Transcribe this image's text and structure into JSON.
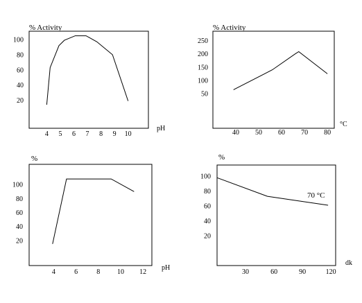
{
  "chart_data": [
    {
      "type": "line",
      "ylabel": "% Activity",
      "xlabel": "pH",
      "xticks": [
        4,
        5,
        6,
        7,
        8,
        9,
        10
      ],
      "yticks": [
        20,
        40,
        60,
        80,
        100
      ],
      "xlim": [
        2.7,
        11.5
      ],
      "ylim": [
        -17,
        111
      ],
      "x": [
        4.0,
        4.25,
        4.9,
        5.3,
        6.1,
        6.9,
        7.7,
        8.85,
        10.0
      ],
      "y": [
        14,
        63,
        92,
        99,
        105,
        105,
        97,
        80,
        19
      ]
    },
    {
      "type": "line",
      "ylabel": "% Activity",
      "xlabel": "°C",
      "xticks": [
        40,
        50,
        60,
        70,
        80
      ],
      "yticks": [
        50,
        100,
        150,
        200,
        250
      ],
      "xlim": [
        30,
        83
      ],
      "ylim": [
        -80,
        285
      ],
      "x": [
        39,
        56,
        66,
        67.5,
        80
      ],
      "y": [
        65,
        140,
        200,
        208,
        125
      ]
    },
    {
      "type": "line",
      "ylabel": "%",
      "xlabel": "pH",
      "xticks": [
        4,
        6,
        8,
        10,
        12
      ],
      "yticks": [
        20,
        40,
        60,
        80,
        100
      ],
      "xlim": [
        1.8,
        12.8
      ],
      "ylim": [
        -16,
        129
      ],
      "x": [
        3.9,
        5.15,
        9.15,
        11.2
      ],
      "y": [
        15,
        108,
        108,
        90
      ]
    },
    {
      "type": "line",
      "ylabel": "%",
      "xlabel": "dk",
      "xticks": [
        30,
        60,
        90,
        120
      ],
      "yticks": [
        20,
        40,
        60,
        80,
        100
      ],
      "xlim": [
        0,
        125
      ],
      "ylim": [
        -20,
        115
      ],
      "x": [
        0,
        53,
        117
      ],
      "y": [
        98,
        73,
        61
      ],
      "annotation": "70 °C"
    }
  ]
}
